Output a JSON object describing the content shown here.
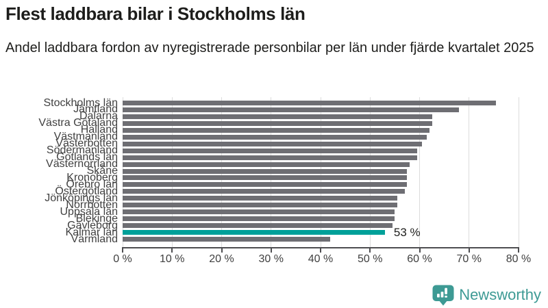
{
  "header": {
    "title": "Flest laddbara bilar i Stockholms län",
    "subtitle": "Andel laddbara fordon av nyregistrerade personbilar per län under fjärde kvartalet 2025"
  },
  "chart_data": {
    "type": "bar",
    "orientation": "horizontal",
    "title": "Flest laddbara bilar i Stockholms län",
    "subtitle": "Andel laddbara fordon av nyregistrerade personbilar per län under fjärde kvartalet 2025",
    "categories": [
      "Stockholms län",
      "Jämtland",
      "Dalarna",
      "Västra Götaland",
      "Halland",
      "Västmanland",
      "Västerbotten",
      "Södermanland",
      "Gotlands län",
      "Västernorrland",
      "Skåne",
      "Kronoberg",
      "Örebro län",
      "Östergötland",
      "Jönköpings län",
      "Norrbotten",
      "Uppsala län",
      "Blekinge",
      "Gävleborg",
      "Kalmar län",
      "Värmland"
    ],
    "values": [
      75.5,
      68,
      62.5,
      62.5,
      62,
      61.5,
      60.5,
      59.5,
      59.5,
      58,
      57.5,
      57.5,
      57.5,
      57,
      55.5,
      55.5,
      55,
      55,
      54.5,
      53,
      42
    ],
    "unit": "%",
    "xlim": [
      0,
      80
    ],
    "x_ticks": [
      "0 %",
      "10 %",
      "20 %",
      "30 %",
      "40 %",
      "50 %",
      "60 %",
      "70 %",
      "80 %"
    ],
    "grid": true,
    "bar_color": "#6e6e73",
    "highlight": {
      "category": "Kalmar län",
      "annotation": "53 %",
      "color": "#00a099"
    }
  },
  "footer": {
    "brand": "Newsworthy",
    "brand_color": "#3d9a94"
  }
}
